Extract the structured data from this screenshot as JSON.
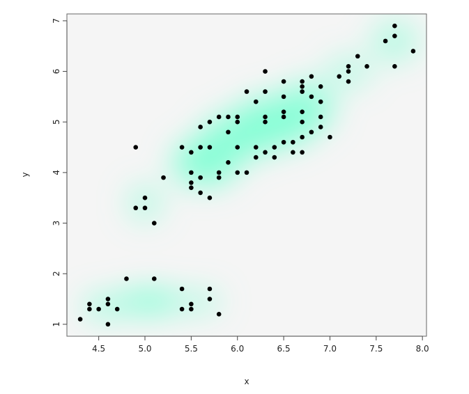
{
  "chart_data": {
    "type": "scatter",
    "title": "",
    "xlabel": "x",
    "ylabel": "y",
    "xlim": [
      4.156,
      8.044
    ],
    "ylim": [
      0.764,
      7.136
    ],
    "x_ticks": [
      "4.5",
      "5.0",
      "5.5",
      "6.0",
      "6.5",
      "7.0",
      "7.5",
      "8.0"
    ],
    "y_ticks": [
      "1",
      "2",
      "3",
      "4",
      "5",
      "6",
      "7"
    ],
    "grid": false,
    "background": "smoothed density (smoothScatter)",
    "colors": {
      "density_high": "#7fffd4",
      "density_low": "#f5f5f5",
      "points": "#000000"
    },
    "points": [
      [
        7.7,
        6.9
      ],
      [
        7.7,
        6.7
      ],
      [
        7.6,
        6.6
      ],
      [
        7.9,
        6.4
      ],
      [
        7.7,
        6.1
      ],
      [
        7.3,
        6.3
      ],
      [
        7.4,
        6.1
      ],
      [
        7.2,
        6.1
      ],
      [
        7.2,
        6.0
      ],
      [
        7.1,
        5.9
      ],
      [
        7.2,
        5.8
      ],
      [
        6.3,
        6.0
      ],
      [
        6.5,
        5.8
      ],
      [
        6.7,
        5.8
      ],
      [
        6.7,
        5.7
      ],
      [
        6.7,
        5.6
      ],
      [
        6.8,
        5.9
      ],
      [
        6.9,
        5.7
      ],
      [
        6.1,
        5.6
      ],
      [
        6.3,
        5.6
      ],
      [
        6.2,
        5.4
      ],
      [
        6.5,
        5.5
      ],
      [
        6.8,
        5.5
      ],
      [
        6.9,
        5.4
      ],
      [
        6.5,
        5.2
      ],
      [
        6.5,
        5.1
      ],
      [
        6.7,
        5.2
      ],
      [
        6.9,
        5.1
      ],
      [
        6.3,
        5.1
      ],
      [
        6.3,
        5.0
      ],
      [
        6.0,
        5.1
      ],
      [
        6.0,
        5.0
      ],
      [
        5.8,
        5.1
      ],
      [
        5.9,
        5.1
      ],
      [
        5.7,
        5.0
      ],
      [
        5.6,
        4.9
      ],
      [
        6.7,
        5.0
      ],
      [
        6.9,
        4.9
      ],
      [
        6.8,
        4.8
      ],
      [
        5.9,
        4.8
      ],
      [
        7.0,
        4.7
      ],
      [
        6.7,
        4.7
      ],
      [
        6.5,
        4.6
      ],
      [
        6.6,
        4.6
      ],
      [
        6.6,
        4.4
      ],
      [
        6.7,
        4.4
      ],
      [
        6.3,
        4.4
      ],
      [
        6.4,
        4.5
      ],
      [
        6.4,
        4.3
      ],
      [
        6.2,
        4.5
      ],
      [
        6.2,
        4.3
      ],
      [
        6.0,
        4.5
      ],
      [
        5.7,
        4.5
      ],
      [
        5.6,
        4.5
      ],
      [
        5.4,
        4.5
      ],
      [
        5.5,
        4.4
      ],
      [
        4.9,
        4.5
      ],
      [
        5.9,
        4.2
      ],
      [
        5.8,
        4.0
      ],
      [
        5.8,
        3.9
      ],
      [
        6.0,
        4.0
      ],
      [
        6.1,
        4.0
      ],
      [
        5.5,
        4.0
      ],
      [
        5.6,
        3.9
      ],
      [
        5.5,
        3.8
      ],
      [
        5.5,
        3.7
      ],
      [
        5.6,
        3.6
      ],
      [
        5.7,
        3.5
      ],
      [
        5.2,
        3.9
      ],
      [
        5.0,
        3.5
      ],
      [
        4.9,
        3.3
      ],
      [
        5.0,
        3.3
      ],
      [
        5.1,
        3.0
      ],
      [
        4.8,
        1.9
      ],
      [
        5.1,
        1.9
      ],
      [
        5.4,
        1.7
      ],
      [
        5.7,
        1.7
      ],
      [
        5.7,
        1.5
      ],
      [
        4.4,
        1.4
      ],
      [
        4.4,
        1.3
      ],
      [
        4.5,
        1.3
      ],
      [
        4.6,
        1.5
      ],
      [
        4.6,
        1.4
      ],
      [
        4.7,
        1.3
      ],
      [
        4.6,
        1.0
      ],
      [
        4.3,
        1.1
      ],
      [
        5.4,
        1.3
      ],
      [
        5.5,
        1.4
      ],
      [
        5.5,
        1.3
      ],
      [
        5.8,
        1.2
      ]
    ]
  }
}
